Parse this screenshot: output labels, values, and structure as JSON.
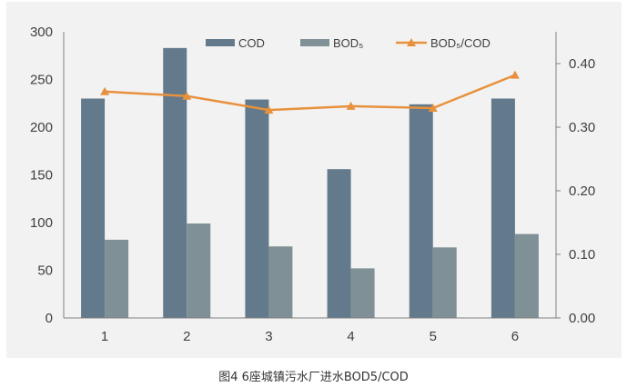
{
  "caption": "图4 6座城镇污水厂进水BOD5/COD",
  "chart_data": {
    "type": "bar",
    "categories": [
      "1",
      "2",
      "3",
      "4",
      "5",
      "6"
    ],
    "series": [
      {
        "name": "COD",
        "kind": "bar",
        "axis": "left",
        "color": "#627a8c",
        "values": [
          230,
          283,
          229,
          156,
          224,
          230
        ]
      },
      {
        "name": "BOD₅",
        "kind": "bar",
        "axis": "left",
        "color": "#7f9196",
        "values": [
          82,
          99,
          75,
          52,
          74,
          88
        ]
      },
      {
        "name": "BOD₅/COD",
        "kind": "line",
        "axis": "right",
        "color": "#e8913d",
        "marker": "triangle",
        "values": [
          0.356,
          0.349,
          0.327,
          0.333,
          0.33,
          0.382
        ]
      }
    ],
    "ylim": [
      0,
      300
    ],
    "yticks": [
      "0",
      "50",
      "100",
      "150",
      "200",
      "250",
      "300"
    ],
    "y2lim": [
      0,
      0.45
    ],
    "y2ticks": [
      "0.00",
      "0.10",
      "0.20",
      "0.30",
      "0.40"
    ],
    "legend_position": "top",
    "grid": false
  }
}
